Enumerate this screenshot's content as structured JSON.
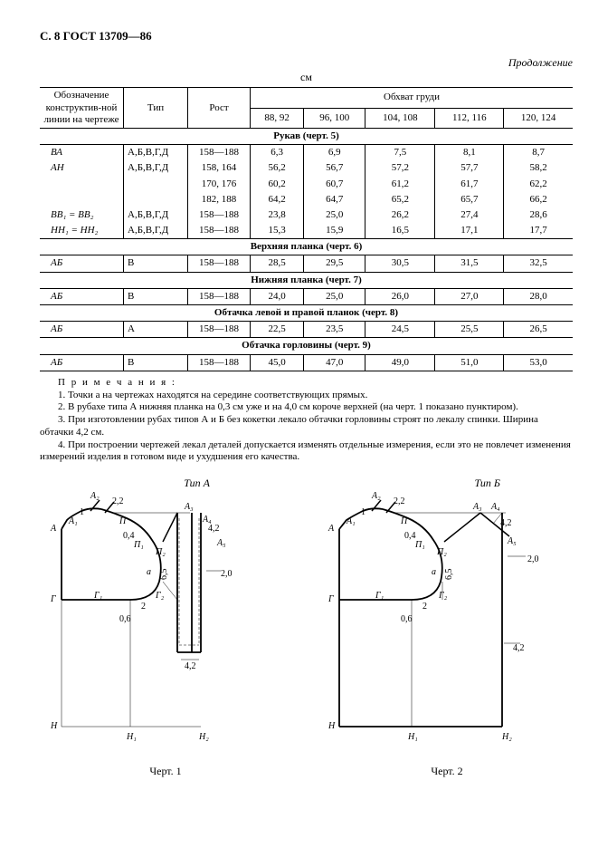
{
  "page_header": "С. 8 ГОСТ 13709—86",
  "continuation": "Продолжение",
  "unit": "см",
  "table": {
    "headers": {
      "col1": "Обозначение конструктив-ной линии на чертеже",
      "col2": "Тип",
      "col3": "Рост",
      "col_span": "Обхват груди",
      "chest": [
        "88, 92",
        "96, 100",
        "104, 108",
        "112, 116",
        "120, 124"
      ]
    },
    "sections": [
      {
        "title": "Рукав (черт. 5)",
        "rows": [
          {
            "label": "ВА",
            "type": "А,Б,В,Г,Д",
            "height": "158—188",
            "v": [
              "6,3",
              "6,9",
              "7,5",
              "8,1",
              "8,7"
            ]
          },
          {
            "label": "АН",
            "type": "А,Б,В,Г,Д",
            "height": "158, 164",
            "v": [
              "56,2",
              "56,7",
              "57,2",
              "57,7",
              "58,2"
            ]
          },
          {
            "label": "",
            "type": "",
            "height": "170, 176",
            "v": [
              "60,2",
              "60,7",
              "61,2",
              "61,7",
              "62,2"
            ]
          },
          {
            "label": "",
            "type": "",
            "height": "182, 188",
            "v": [
              "64,2",
              "64,7",
              "65,2",
              "65,7",
              "66,2"
            ]
          },
          {
            "label": "ВВ₁ = ВВ₂",
            "type": "А,Б,В,Г,Д",
            "height": "158—188",
            "v": [
              "23,8",
              "25,0",
              "26,2",
              "27,4",
              "28,6"
            ]
          },
          {
            "label": "НН₁ = НН₂",
            "type": "А,Б,В,Г,Д",
            "height": "158—188",
            "v": [
              "15,3",
              "15,9",
              "16,5",
              "17,1",
              "17,7"
            ]
          }
        ]
      },
      {
        "title": "Верхняя планка (черт. 6)",
        "rows": [
          {
            "label": "АБ",
            "type": "В",
            "height": "158—188",
            "v": [
              "28,5",
              "29,5",
              "30,5",
              "31,5",
              "32,5"
            ]
          }
        ]
      },
      {
        "title": "Нижняя планка (черт. 7)",
        "rows": [
          {
            "label": "АБ",
            "type": "В",
            "height": "158—188",
            "v": [
              "24,0",
              "25,0",
              "26,0",
              "27,0",
              "28,0"
            ]
          }
        ]
      },
      {
        "title": "Обтачка левой и правой планок (черт. 8)",
        "rows": [
          {
            "label": "АБ",
            "type": "А",
            "height": "158—188",
            "v": [
              "22,5",
              "23,5",
              "24,5",
              "25,5",
              "26,5"
            ]
          }
        ]
      },
      {
        "title": "Обтачка горловины (черт. 9)",
        "rows": [
          {
            "label": "АБ",
            "type": "В",
            "height": "158—188",
            "v": [
              "45,0",
              "47,0",
              "49,0",
              "51,0",
              "53,0"
            ]
          }
        ]
      }
    ]
  },
  "notes": {
    "title": "П р и м е ч а н и я :",
    "items": [
      "1. Точки а на чертежах находятся на середине соответствующих прямых.",
      "2. В рубахе типа А нижняя планка на 0,3 см уже и на 4,0 см короче верхней (на черт. 1 показано пунктиром).",
      "3. При изготовлении рубах типов А и Б без кокетки лекало обтачки горловины строят по лекалу спинки. Ширина обтачки 4,2 см.",
      "4. При построении чертежей лекал деталей допускается изменять отдельные измерения, если это не повлечет изменения измерений изделия в готовом виде и ухудшения его качества."
    ]
  },
  "figures": {
    "fig1": {
      "type_label": "Тип А",
      "caption": "Черт. 1",
      "labels": [
        "А",
        "А₁",
        "А₂",
        "А₃",
        "А₄",
        "А₅",
        "П",
        "П₁",
        "П₂",
        "а",
        "Г",
        "Г₁",
        "Г₂",
        "Н",
        "Н₁",
        "Н₂"
      ],
      "dims": [
        "2,2",
        "4,2",
        "0,4",
        "2",
        "0,6",
        "6,5",
        "2,0",
        "4,2",
        "1"
      ]
    },
    "fig2": {
      "type_label": "Тип Б",
      "caption": "Черт. 2",
      "labels": [
        "А",
        "А₁",
        "А₂",
        "А₃",
        "А₄",
        "А₅",
        "П",
        "П₁",
        "П₂",
        "а",
        "Г",
        "Г₁",
        "Г₂",
        "Н",
        "Н₁",
        "Н₂"
      ],
      "dims": [
        "2,2",
        "4,2",
        "0,4",
        "2",
        "0,6",
        "6,5",
        "2,0",
        "4,2",
        "1"
      ]
    }
  },
  "colors": {
    "bg": "#ffffff",
    "fg": "#000000"
  }
}
